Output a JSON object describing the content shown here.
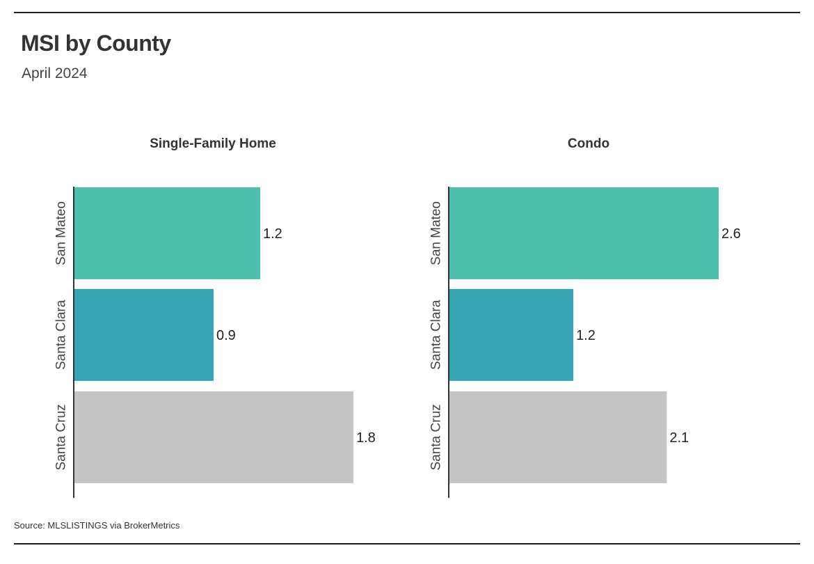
{
  "title": "MSI by County",
  "subtitle": "April 2024",
  "source": "Source:  MLSLISTINGS via BrokerMetrics",
  "colors": {
    "San Mateo": "#4fbfad",
    "Santa Clara": "#37a5b3",
    "Santa Cruz": "#c4c4c4",
    "axis": "#333333",
    "rule": "#1e1e1e"
  },
  "chart_data": [
    {
      "type": "bar",
      "orientation": "horizontal",
      "title": "Single-Family Home",
      "categories": [
        "San Mateo",
        "Santa Clara",
        "Santa Cruz"
      ],
      "values": [
        1.2,
        0.9,
        1.8
      ],
      "value_labels": [
        "1.2",
        "0.9",
        "1.8"
      ],
      "xlim": [
        0,
        1.8
      ],
      "grid": false,
      "legend": "none"
    },
    {
      "type": "bar",
      "orientation": "horizontal",
      "title": "Condo",
      "categories": [
        "San Mateo",
        "Santa Clara",
        "Santa Cruz"
      ],
      "values": [
        2.6,
        1.2,
        2.1
      ],
      "value_labels": [
        "2.6",
        "1.2",
        "2.1"
      ],
      "xlim": [
        0,
        2.6
      ],
      "grid": false,
      "legend": "none"
    }
  ]
}
